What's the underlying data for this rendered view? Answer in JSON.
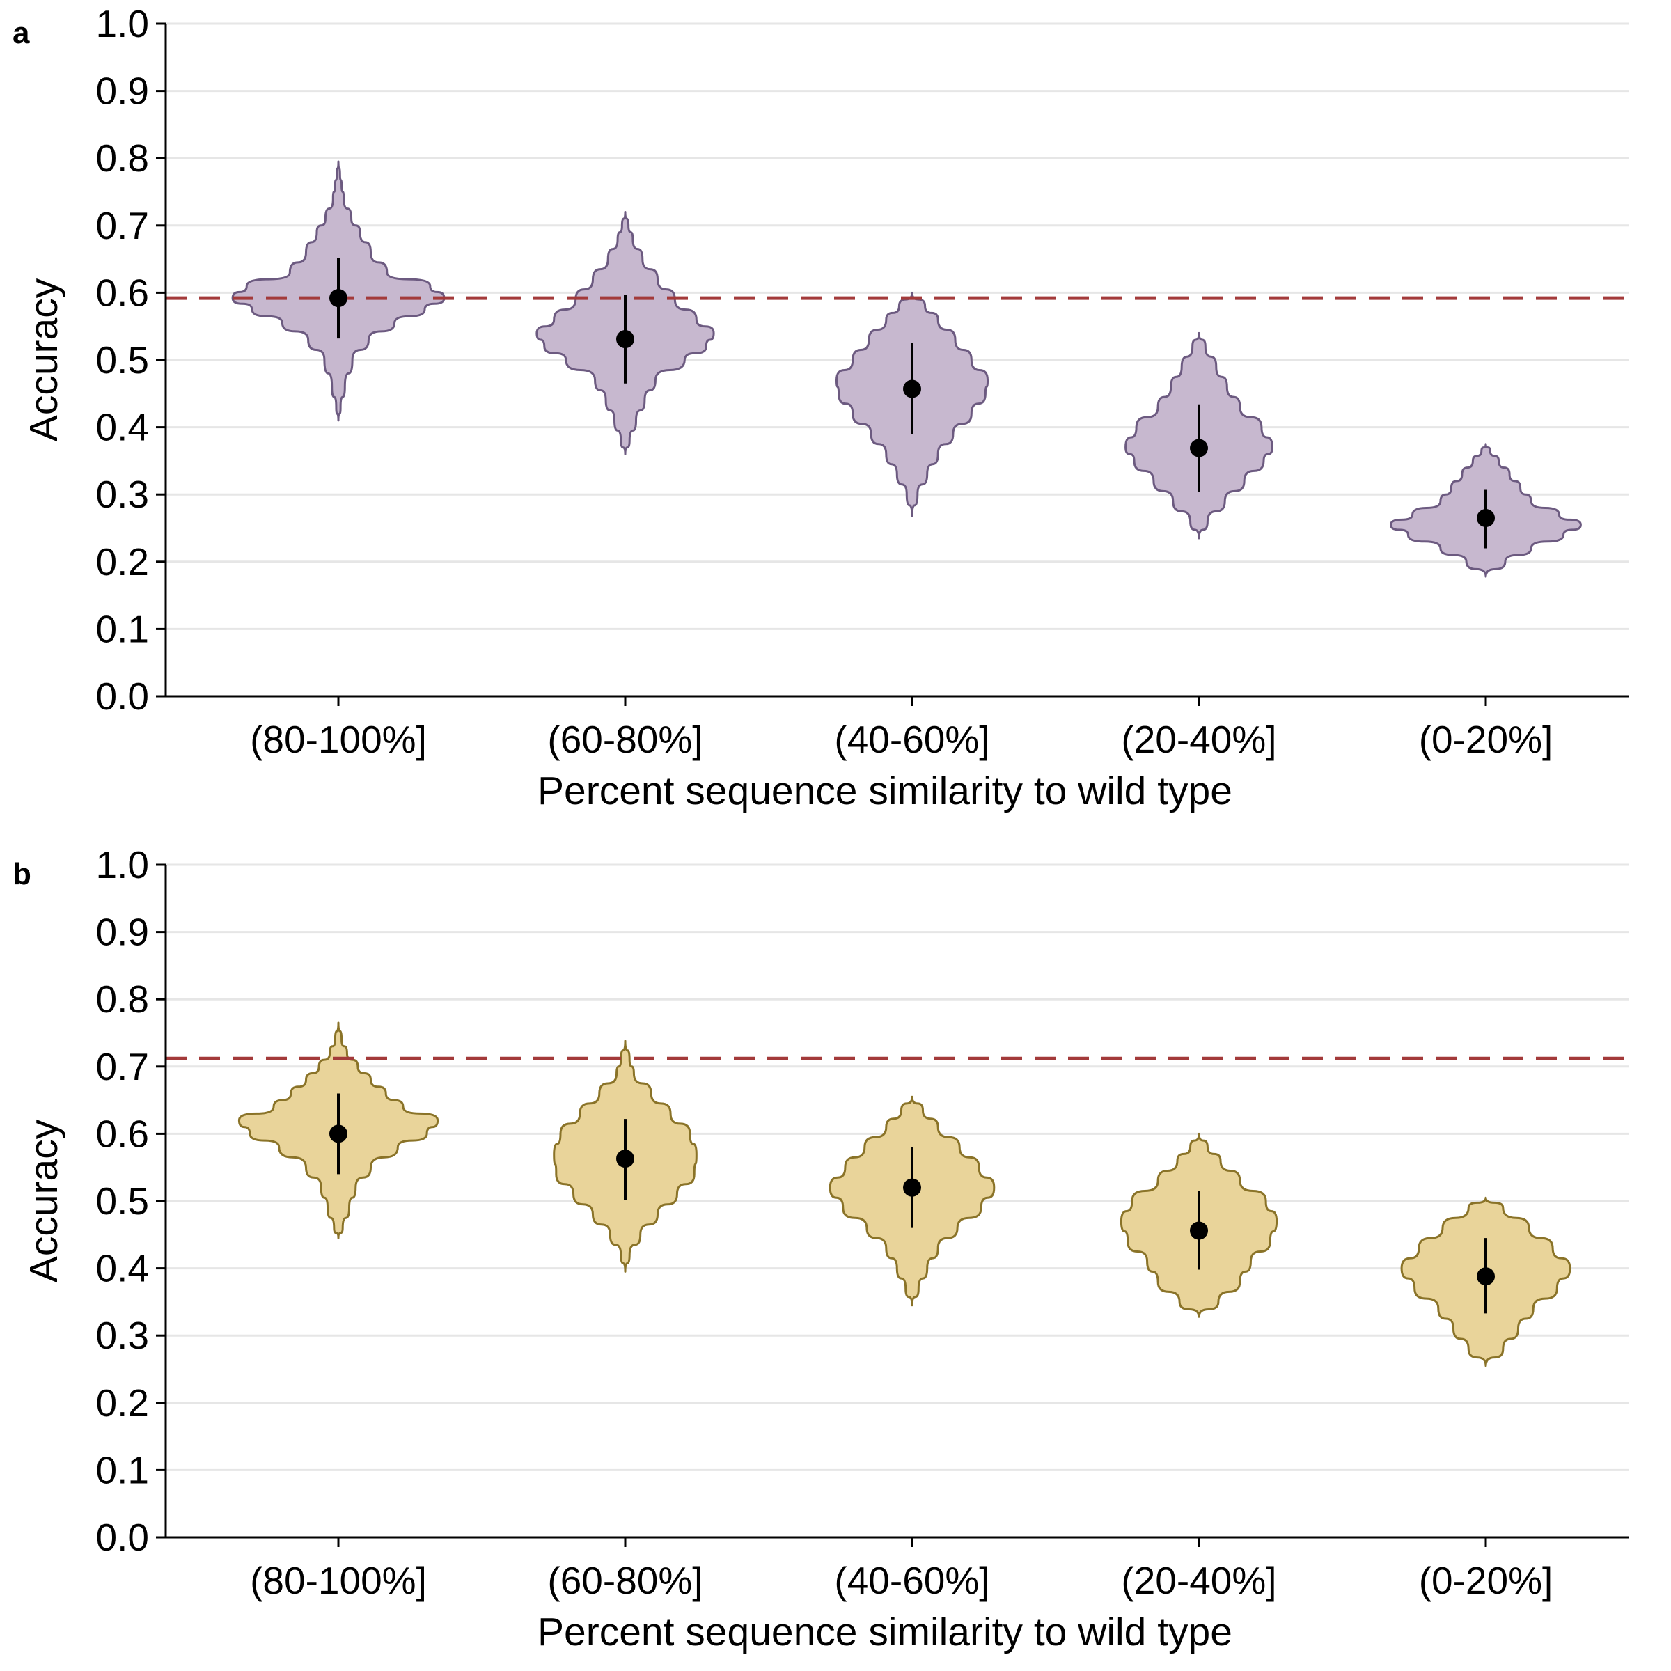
{
  "chart_data": [
    {
      "panel_label": "a",
      "type": "violin",
      "xlabel": "Percent sequence similarity to wild type",
      "ylabel": "Accuracy",
      "ylim": [
        0.0,
        1.0
      ],
      "yticks": [
        "0.0",
        "0.1",
        "0.2",
        "0.3",
        "0.4",
        "0.5",
        "0.6",
        "0.7",
        "0.8",
        "0.9",
        "1.0"
      ],
      "grid": "horizontal",
      "categories": [
        "(80-100%]",
        "(60-80%]",
        "(40-60%]",
        "(20-40%]",
        "(0-20%]"
      ],
      "fill_color": "#c7b8cf",
      "edge_color": "#6c5a80",
      "reference_line": {
        "y": 0.592,
        "color": "#a33a3a",
        "style": "dashed"
      },
      "means": [
        0.592,
        0.531,
        0.457,
        0.369,
        0.265
      ],
      "error_low": [
        0.532,
        0.465,
        0.39,
        0.304,
        0.22
      ],
      "error_high": [
        0.652,
        0.597,
        0.525,
        0.434,
        0.307
      ],
      "distributions": [
        {
          "y": [
            0.41,
            0.43,
            0.46,
            0.5,
            0.53,
            0.555,
            0.575,
            0.592,
            0.61,
            0.63,
            0.66,
            0.69,
            0.71,
            0.74,
            0.76,
            0.775,
            0.795
          ],
          "w": [
            0.0,
            0.02,
            0.06,
            0.13,
            0.28,
            0.52,
            0.8,
            0.98,
            0.85,
            0.45,
            0.3,
            0.2,
            0.12,
            0.05,
            0.03,
            0.015,
            0.0
          ]
        },
        {
          "y": [
            0.36,
            0.38,
            0.41,
            0.44,
            0.47,
            0.5,
            0.52,
            0.54,
            0.56,
            0.59,
            0.62,
            0.65,
            0.68,
            0.7,
            0.72
          ],
          "w": [
            0.0,
            0.04,
            0.1,
            0.18,
            0.28,
            0.55,
            0.75,
            0.82,
            0.66,
            0.46,
            0.3,
            0.16,
            0.07,
            0.03,
            0.0
          ]
        },
        {
          "y": [
            0.268,
            0.3,
            0.33,
            0.36,
            0.39,
            0.42,
            0.45,
            0.47,
            0.5,
            0.53,
            0.56,
            0.58,
            0.6
          ],
          "w": [
            0.0,
            0.05,
            0.14,
            0.24,
            0.38,
            0.55,
            0.68,
            0.7,
            0.55,
            0.4,
            0.24,
            0.12,
            0.0
          ]
        },
        {
          "y": [
            0.235,
            0.26,
            0.29,
            0.32,
            0.35,
            0.37,
            0.4,
            0.43,
            0.46,
            0.49,
            0.52,
            0.54
          ],
          "w": [
            0.0,
            0.08,
            0.24,
            0.42,
            0.6,
            0.68,
            0.58,
            0.38,
            0.26,
            0.16,
            0.06,
            0.0
          ]
        },
        {
          "y": [
            0.178,
            0.2,
            0.22,
            0.24,
            0.255,
            0.27,
            0.29,
            0.31,
            0.33,
            0.35,
            0.365,
            0.375
          ],
          "w": [
            0.0,
            0.18,
            0.42,
            0.72,
            0.88,
            0.68,
            0.42,
            0.32,
            0.22,
            0.12,
            0.04,
            0.0
          ]
        }
      ]
    },
    {
      "panel_label": "b",
      "type": "violin",
      "xlabel": "Percent sequence similarity to wild type",
      "ylabel": "Accuracy",
      "ylim": [
        0.0,
        1.0
      ],
      "yticks": [
        "0.0",
        "0.1",
        "0.2",
        "0.3",
        "0.4",
        "0.5",
        "0.6",
        "0.7",
        "0.8",
        "0.9",
        "1.0"
      ],
      "grid": "horizontal",
      "categories": [
        "(80-100%]",
        "(60-80%]",
        "(40-60%]",
        "(20-40%]",
        "(0-20%]"
      ],
      "fill_color": "#e9d49a",
      "edge_color": "#8a7328",
      "reference_line": {
        "y": 0.712,
        "color": "#a33a3a",
        "style": "dashed"
      },
      "means": [
        0.6,
        0.563,
        0.52,
        0.456,
        0.388
      ],
      "error_low": [
        0.54,
        0.502,
        0.46,
        0.398,
        0.333
      ],
      "error_high": [
        0.66,
        0.622,
        0.58,
        0.515,
        0.445
      ],
      "distributions": [
        {
          "y": [
            0.445,
            0.46,
            0.49,
            0.52,
            0.55,
            0.58,
            0.6,
            0.62,
            0.64,
            0.66,
            0.68,
            0.7,
            0.72,
            0.74,
            0.765
          ],
          "w": [
            0.0,
            0.04,
            0.1,
            0.16,
            0.3,
            0.55,
            0.82,
            0.92,
            0.6,
            0.44,
            0.3,
            0.18,
            0.08,
            0.03,
            0.0
          ]
        },
        {
          "y": [
            0.395,
            0.42,
            0.45,
            0.48,
            0.51,
            0.54,
            0.57,
            0.6,
            0.63,
            0.66,
            0.69,
            0.71,
            0.738
          ],
          "w": [
            0.0,
            0.04,
            0.14,
            0.3,
            0.48,
            0.64,
            0.66,
            0.6,
            0.42,
            0.24,
            0.08,
            0.04,
            0.0
          ]
        },
        {
          "y": [
            0.345,
            0.37,
            0.4,
            0.43,
            0.46,
            0.49,
            0.52,
            0.55,
            0.58,
            0.61,
            0.635,
            0.655
          ],
          "w": [
            0.0,
            0.06,
            0.14,
            0.24,
            0.42,
            0.64,
            0.76,
            0.62,
            0.44,
            0.24,
            0.1,
            0.0
          ]
        },
        {
          "y": [
            0.328,
            0.35,
            0.38,
            0.41,
            0.44,
            0.47,
            0.5,
            0.53,
            0.56,
            0.58,
            0.6
          ],
          "w": [
            0.0,
            0.18,
            0.38,
            0.48,
            0.66,
            0.72,
            0.62,
            0.38,
            0.2,
            0.08,
            0.0
          ]
        },
        {
          "y": [
            0.255,
            0.28,
            0.31,
            0.34,
            0.37,
            0.4,
            0.43,
            0.46,
            0.49,
            0.505
          ],
          "w": [
            0.0,
            0.16,
            0.3,
            0.44,
            0.66,
            0.78,
            0.62,
            0.4,
            0.16,
            0.0
          ]
        }
      ]
    }
  ]
}
